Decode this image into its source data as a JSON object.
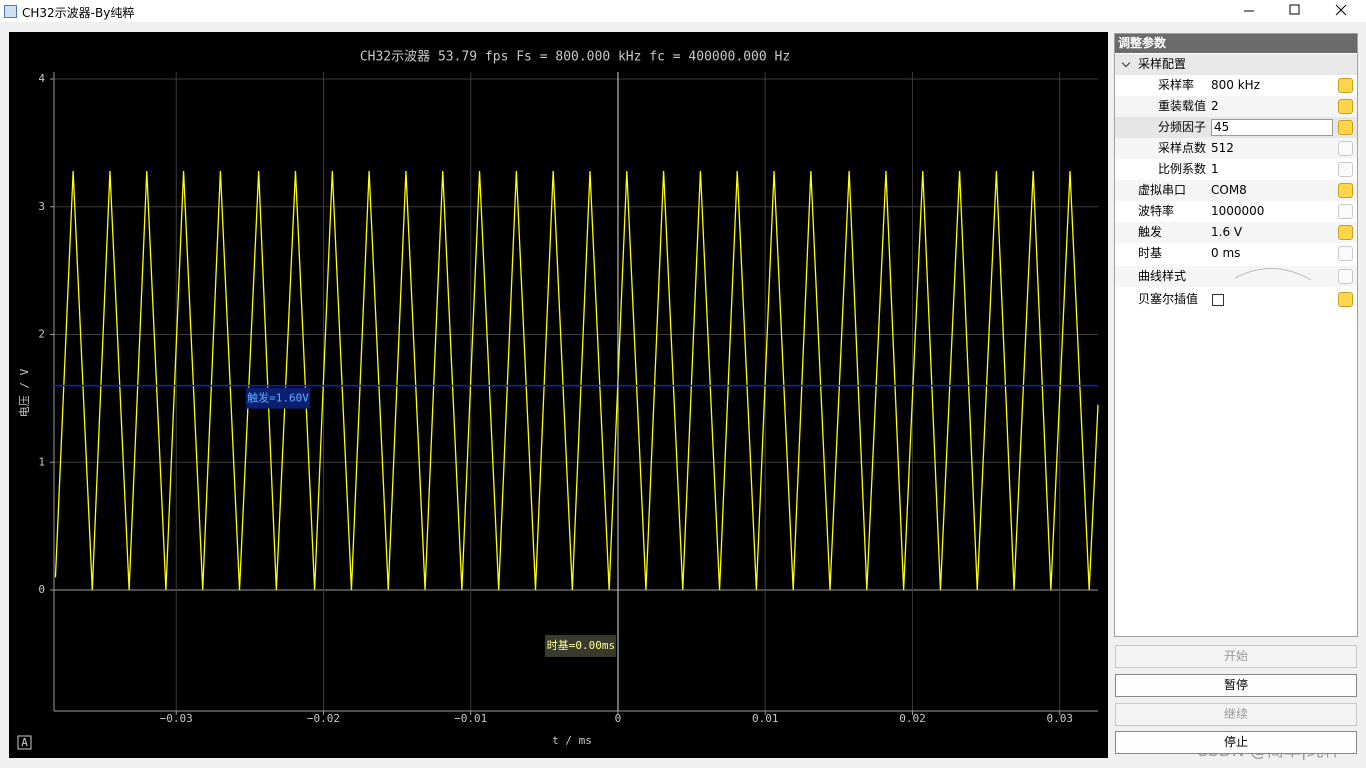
{
  "window": {
    "title": "CH32示波器-By纯粹"
  },
  "plot": {
    "type": "line",
    "title": "CH32示波器 53.79 fps Fs = 800.000 kHz fc = 400000.000 Hz",
    "x_label": "t / ms",
    "y_label": "电压 / V",
    "x": [
      -0.0382,
      -0.037,
      -0.0357,
      -0.0345,
      -0.0332,
      -0.032,
      -0.0307,
      -0.0295,
      -0.0282,
      -0.027,
      -0.0257,
      -0.0244,
      -0.0232,
      -0.0219,
      -0.0206,
      -0.0194,
      -0.0181,
      -0.0169,
      -0.0156,
      -0.0144,
      -0.0131,
      -0.0119,
      -0.0106,
      -0.0094,
      -0.0081,
      -0.0069,
      -0.0056,
      -0.0044,
      -0.0031,
      -0.0019,
      -0.0006,
      0.0006,
      0.0019,
      0.0031,
      0.0044,
      0.0056,
      0.0069,
      0.0081,
      0.0094,
      0.0106,
      0.0119,
      0.0131,
      0.0144,
      0.0157,
      0.0169,
      0.0182,
      0.0194,
      0.0207,
      0.0219,
      0.0232,
      0.0244,
      0.0257,
      0.0269,
      0.0282,
      0.0294,
      0.0307,
      0.032,
      0.0326
    ],
    "series": [
      {
        "color": "#ffff00",
        "values": [
          0.1,
          3.28,
          0,
          3.28,
          0,
          3.28,
          0,
          3.28,
          0,
          3.28,
          0,
          3.28,
          0,
          3.28,
          0,
          3.28,
          0,
          3.28,
          0,
          3.28,
          0,
          3.28,
          0,
          3.28,
          0,
          3.28,
          0,
          3.28,
          0,
          3.28,
          0,
          3.28,
          0,
          3.28,
          0,
          3.28,
          0,
          3.28,
          0,
          3.28,
          0,
          3.28,
          0,
          3.28,
          0,
          3.28,
          0,
          3.28,
          0,
          3.28,
          0,
          3.28,
          0,
          3.28,
          0,
          3.28,
          0,
          1.45
        ]
      }
    ],
    "xlim": [
      -0.0383,
      0.0326
    ],
    "ylim": [
      -0.947,
      4.055
    ],
    "xticks": [
      {
        "value": -0.03,
        "label": "−0.03"
      },
      {
        "value": -0.02,
        "label": "−0.02"
      },
      {
        "value": -0.01,
        "label": "−0.01"
      },
      0,
      0.01,
      0.02,
      0.03
    ],
    "yticks": [
      0,
      1,
      2,
      3,
      4
    ],
    "grid": true,
    "trigger": {
      "value": 1.6,
      "label": "触发=1.60V"
    },
    "timebase": {
      "value": 0,
      "label": "时基=0.00ms"
    },
    "corner_button": "A"
  },
  "params": {
    "header": "调整参数",
    "group": "采样配置",
    "group_rows": [
      {
        "label": "采样率",
        "value": "800 kHz"
      },
      {
        "label": "重装载值",
        "value": "2"
      },
      {
        "label": "分频因子",
        "value": "45"
      },
      {
        "label": "采样点数",
        "value": "512"
      },
      {
        "label": "比例系数",
        "value": "1"
      }
    ],
    "rows": [
      {
        "label": "虚拟串口",
        "value": "COM8"
      },
      {
        "label": "波特率",
        "value": "1000000"
      },
      {
        "label": "触发",
        "value": "1.6 V"
      },
      {
        "label": "时基",
        "value": "0 ms"
      },
      {
        "label": "曲线样式"
      },
      {
        "label": "贝塞尔插值"
      }
    ]
  },
  "buttons": [
    "开始",
    "暂停",
    "继续",
    "停止"
  ],
  "watermark": "CSDN @简单|纯粹"
}
